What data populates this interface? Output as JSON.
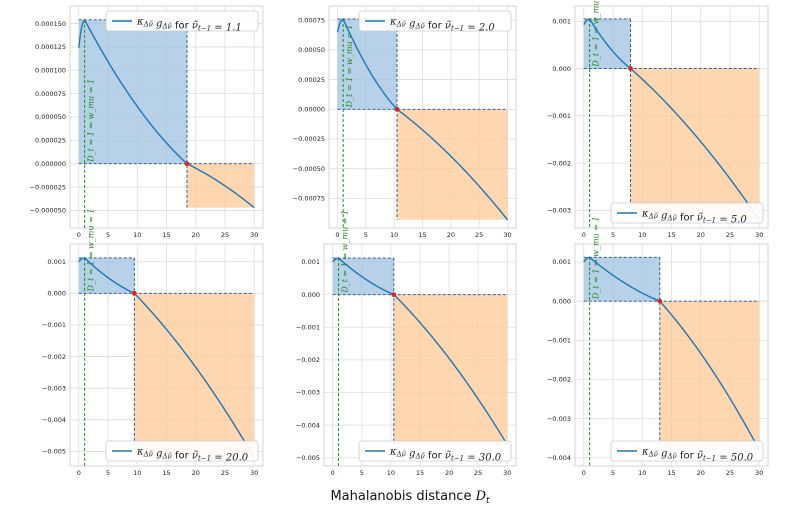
{
  "chart_data": {
    "type": "line",
    "xlabel": "Mahalanobis distance D_t",
    "colors": {
      "curve": "#1f77b4",
      "positive_fill": "#9fc2e0",
      "negative_fill": "#fdc996",
      "marker": "#d62728",
      "annotation": "#228b22",
      "grid": "#dddddd"
    },
    "x_range": [
      0,
      30
    ],
    "x_ticks": [
      "0",
      "5",
      "10",
      "15",
      "20",
      "25",
      "30"
    ],
    "annotation": "D_t = 1 ⇒ w_mu = 1",
    "panels": [
      {
        "legend": "κ_Δν̃ g_Δν̃ for ν̃_{t−1} = 1.1",
        "legend_pos": "top-right",
        "ylim": [
          -6e-05,
          0.00016
        ],
        "yticks": [
          -5e-05,
          -2.5e-05,
          0,
          2.5e-05,
          5e-05,
          7.5e-05,
          0.0001,
          0.000125,
          0.00015
        ],
        "ytick_labels": [
          "−0.000050",
          "−0.000025",
          "0.000000",
          "0.000025",
          "0.000050",
          "0.000075",
          "0.000100",
          "0.000125",
          "0.000150"
        ],
        "root": 18.5,
        "curve": {
          "y0": 0.000124,
          "peak": 0.000154,
          "peak_x": 1.0,
          "y30": -4.7e-05
        }
      },
      {
        "legend": "κ_Δν̃ g_Δν̃ for ν̃_{t−1} = 2.0",
        "legend_pos": "top-right",
        "ylim": [
          -0.00093,
          0.0008
        ],
        "yticks": [
          -0.00075,
          -0.0005,
          -0.00025,
          0,
          0.00025,
          0.0005,
          0.00075
        ],
        "ytick_labels": [
          "−0.00075",
          "−0.00050",
          "−0.00025",
          "0.00000",
          "0.00025",
          "0.00050",
          "0.00075"
        ],
        "root": 10.5,
        "curve": {
          "y0": 0.00065,
          "peak": 0.00076,
          "peak_x": 1.0,
          "y30": -0.00093
        }
      },
      {
        "legend": "κ_Δν̃ g_Δν̃ for ν̃_{t−1} = 5.0",
        "legend_pos": "bottom-right",
        "ylim": [
          -0.0032,
          0.00115
        ],
        "yticks": [
          -0.003,
          -0.002,
          -0.001,
          0,
          0.001
        ],
        "ytick_labels": [
          "−0.003",
          "−0.002",
          "−0.001",
          "0.000",
          "0.001"
        ],
        "root": 8.0,
        "curve": {
          "y0": 0.00093,
          "peak": 0.00105,
          "peak_x": 1.0,
          "y30": -0.0032
        }
      },
      {
        "legend": "κ_Δν̃ g_Δν̃ for ν̃_{t−1} = 20.0",
        "legend_pos": "bottom-right",
        "ylim": [
          -0.0052,
          0.0013
        ],
        "yticks": [
          -0.005,
          -0.004,
          -0.003,
          -0.002,
          -0.001,
          0,
          0.001
        ],
        "ytick_labels": [
          "−0.005",
          "−0.004",
          "−0.003",
          "−0.002",
          "−0.001",
          "0.000",
          "0.001"
        ],
        "root": 9.5,
        "curve": {
          "y0": 0.001,
          "peak": 0.00112,
          "peak_x": 1.0,
          "y30": -0.0052
        }
      },
      {
        "legend": "κ_Δν̃ g_Δν̃ for ν̃_{t−1} = 30.0",
        "legend_pos": "bottom-right",
        "ylim": [
          -0.005,
          0.0013
        ],
        "yticks": [
          -0.005,
          -0.004,
          -0.003,
          -0.002,
          -0.001,
          0,
          0.001
        ],
        "ytick_labels": [
          "−0.005",
          "−0.004",
          "−0.003",
          "−0.002",
          "−0.001",
          "0.000",
          "0.001"
        ],
        "root": 10.5,
        "curve": {
          "y0": 0.001,
          "peak": 0.00112,
          "peak_x": 1.0,
          "y30": -0.0046
        }
      },
      {
        "legend": "κ_Δν̃ g_Δν̃ for ν̃_{t−1} = 50.0",
        "legend_pos": "bottom-right",
        "ylim": [
          -0.004,
          0.00125
        ],
        "yticks": [
          -0.004,
          -0.003,
          -0.002,
          -0.001,
          0,
          0.001
        ],
        "ytick_labels": [
          "−0.004",
          "−0.003",
          "−0.002",
          "−0.001",
          "0.000",
          "0.001"
        ],
        "root": 13.0,
        "curve": {
          "y0": 0.001,
          "peak": 0.00112,
          "peak_x": 1.0,
          "y30": -0.0038
        }
      }
    ]
  }
}
